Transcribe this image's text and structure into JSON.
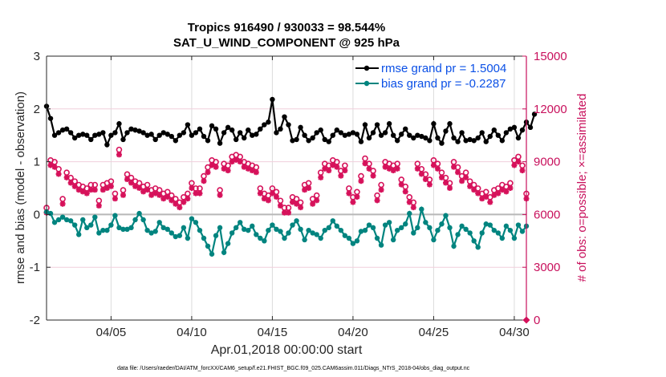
{
  "chart_data": {
    "type": "line",
    "title": "Tropics 916490 / 930033 = 98.544%",
    "subtitle": "SAT_U_WIND_COMPONENT @ 925 hPa",
    "xlabel": "Apr.01,2018 00:00:00 start",
    "ylabel_left": "rmse and bias (model - observation)",
    "ylabel_right": "# of obs: o=possible; ×=assimilated",
    "footnote": "data file: /Users/raeder/DAI/ATM_forcXX/CAM6_setup/f.e21.FHIST_BGC.f09_025.CAM6assim.011/Diags_NTrS_2018-04/obs_diag_output.nc",
    "x_units": "day of April 2018",
    "xlim": [
      1,
      30.75
    ],
    "ylim_left": [
      -2,
      3
    ],
    "ylim_right": [
      0,
      15000
    ],
    "x_ticks": [
      5,
      10,
      15,
      20,
      25,
      30
    ],
    "x_tick_labels": [
      "04/05",
      "04/10",
      "04/15",
      "04/20",
      "04/25",
      "04/30"
    ],
    "y_ticks_left": [
      3,
      2,
      1,
      0,
      -1,
      -2
    ],
    "y_tick_labels_left": [
      "3",
      "2",
      "1",
      "0",
      "-1",
      "-2"
    ],
    "y_ticks_right": [
      15000,
      12000,
      9000,
      6000,
      3000,
      0
    ],
    "y_tick_labels_right": [
      "15000",
      "12000",
      "9000",
      "6000",
      "3000",
      "0"
    ],
    "grid": true,
    "zero_line": true,
    "legend": {
      "placement": "top-right",
      "entries": [
        {
          "label": "rmse grand pr = 1.5004",
          "series": "rmse"
        },
        {
          "label": "bias grand pr = -0.2287",
          "series": "bias"
        }
      ]
    },
    "x_start_day": 1,
    "x_step_days": 0.25,
    "series": [
      {
        "name": "rmse",
        "axis": "left",
        "color": "#000000",
        "values": [
          2.05,
          1.82,
          1.5,
          1.55,
          1.6,
          1.62,
          1.55,
          1.45,
          1.5,
          1.52,
          1.5,
          1.42,
          1.5,
          1.52,
          1.55,
          1.32,
          1.5,
          1.55,
          1.72,
          1.42,
          1.55,
          1.62,
          1.6,
          1.58,
          1.55,
          1.5,
          1.52,
          1.42,
          1.5,
          1.55,
          1.52,
          1.48,
          1.4,
          1.5,
          1.55,
          1.7,
          1.5,
          1.55,
          1.62,
          1.48,
          1.4,
          1.68,
          1.62,
          1.35,
          1.55,
          1.65,
          1.6,
          1.42,
          1.55,
          1.45,
          1.6,
          1.5,
          1.52,
          1.62,
          1.7,
          1.75,
          2.18,
          1.55,
          1.62,
          1.85,
          1.7,
          1.4,
          1.42,
          1.65,
          1.5,
          1.4,
          1.45,
          1.55,
          1.6,
          1.42,
          1.38,
          1.5,
          1.6,
          1.55,
          1.5,
          1.52,
          1.55,
          1.52,
          1.38,
          1.7,
          1.45,
          1.55,
          1.7,
          1.5,
          1.55,
          1.72,
          1.5,
          1.4,
          1.52,
          1.62,
          1.5,
          1.45,
          1.5,
          1.48,
          1.45,
          1.4,
          1.72,
          1.45,
          1.35,
          1.58,
          1.72,
          1.45,
          1.38,
          1.55,
          1.4,
          1.42,
          1.4,
          1.45,
          1.55,
          1.38,
          1.48,
          1.6,
          1.5,
          1.4,
          1.55,
          1.62,
          1.65,
          1.45,
          1.6,
          1.75,
          1.65,
          1.9
        ]
      },
      {
        "name": "bias",
        "axis": "left",
        "color": "#00847f",
        "values": [
          0.05,
          0.02,
          -0.15,
          -0.1,
          -0.05,
          -0.1,
          -0.12,
          -0.2,
          -0.38,
          -0.1,
          -0.25,
          -0.2,
          -0.05,
          -0.35,
          -0.3,
          -0.3,
          -0.2,
          -0.02,
          -0.25,
          -0.28,
          -0.28,
          -0.25,
          -0.1,
          0.02,
          -0.1,
          -0.3,
          -0.35,
          -0.32,
          -0.15,
          -0.25,
          -0.28,
          -0.35,
          -0.42,
          -0.4,
          -0.25,
          -0.45,
          -0.08,
          -0.15,
          -0.3,
          -0.45,
          -0.6,
          -0.75,
          -0.4,
          -0.25,
          -0.72,
          -0.55,
          -0.35,
          -0.25,
          -0.15,
          -0.28,
          -0.3,
          -0.22,
          -0.38,
          -0.45,
          -0.5,
          -0.3,
          -0.2,
          -0.28,
          -0.32,
          -0.45,
          -0.35,
          -0.2,
          -0.12,
          -0.28,
          -0.48,
          -0.3,
          -0.35,
          -0.38,
          -0.45,
          -0.3,
          -0.25,
          -0.12,
          -0.22,
          -0.3,
          -0.4,
          -0.45,
          -0.55,
          -0.5,
          -0.32,
          -0.3,
          -0.2,
          -0.25,
          -0.45,
          -0.58,
          -0.2,
          -0.15,
          -0.48,
          -0.3,
          -0.25,
          -0.18,
          0.02,
          -0.35,
          -0.25,
          0.1,
          -0.15,
          -0.25,
          -0.48,
          -0.3,
          -0.18,
          -0.02,
          -0.25,
          -0.6,
          -0.38,
          -0.22,
          -0.28,
          -0.35,
          -0.5,
          -0.62,
          -0.35,
          -0.18,
          -0.2,
          -0.3,
          -0.35,
          -0.45,
          -0.22,
          -0.3,
          -0.45,
          -0.2,
          -0.32,
          -0.22
        ]
      },
      {
        "name": "obs possible",
        "axis": "right",
        "color": "#d6115a",
        "marker": "o",
        "values": [
          6200,
          8900,
          8800,
          8400,
          6700,
          8200,
          7900,
          7700,
          7500,
          7400,
          7300,
          7500,
          7500,
          6600,
          7500,
          7600,
          7700,
          7000,
          9500,
          7200,
          8100,
          7900,
          7700,
          7600,
          7400,
          7500,
          7200,
          7300,
          7200,
          7000,
          7100,
          6900,
          6700,
          6500,
          6800,
          7000,
          7600,
          7300,
          7300,
          8000,
          8500,
          8900,
          8800,
          7200,
          8700,
          8600,
          9100,
          9200,
          9100,
          8800,
          8700,
          8600,
          8500,
          7300,
          7000,
          6900,
          7300,
          7100,
          6600,
          6200,
          6200,
          6800,
          6700,
          6500,
          7500,
          7600,
          6700,
          6900,
          8200,
          8700,
          8600,
          8900,
          8800,
          8300,
          8600,
          7300,
          6800,
          7100,
          8000,
          9000,
          8700,
          8300,
          6900,
          7500,
          8800,
          8700,
          8600,
          8700,
          7800,
          7400,
          6800,
          6500,
          8700,
          8400,
          8100,
          7800,
          8900,
          8700,
          8200,
          7900,
          7600,
          8800,
          8500,
          8000,
          8200,
          7700,
          7500,
          7300,
          7000,
          7100,
          6800,
          7200,
          7300,
          7500,
          7400,
          7600,
          8900,
          9100,
          8600,
          7000
        ]
      },
      {
        "name": "obs assimilated",
        "axis": "right",
        "color": "#d6115a",
        "marker": "*",
        "values": [
          6100,
          8800,
          8700,
          8300,
          6600,
          8100,
          7800,
          7600,
          7400,
          7300,
          7200,
          7400,
          7400,
          6500,
          7400,
          7500,
          7600,
          6900,
          9400,
          7100,
          8000,
          7800,
          7600,
          7500,
          7300,
          7400,
          7100,
          7200,
          7100,
          6900,
          7000,
          6800,
          6600,
          6400,
          6700,
          6900,
          7500,
          7200,
          7200,
          7900,
          8400,
          8800,
          8700,
          7100,
          8600,
          8500,
          9000,
          9100,
          9000,
          8700,
          8600,
          8500,
          8400,
          7200,
          6900,
          6800,
          7200,
          7000,
          6500,
          6100,
          6100,
          6700,
          6600,
          6400,
          7400,
          7500,
          6600,
          6800,
          8100,
          8600,
          8500,
          8800,
          8700,
          8200,
          8500,
          7200,
          6700,
          7000,
          7900,
          8900,
          8600,
          8200,
          6800,
          7400,
          8700,
          8600,
          8500,
          8600,
          7700,
          7300,
          6700,
          6400,
          8600,
          8300,
          8000,
          7700,
          8800,
          8600,
          8100,
          7800,
          7500,
          8700,
          8400,
          7900,
          8100,
          7600,
          7400,
          7200,
          6900,
          7000,
          6700,
          7100,
          7200,
          7400,
          7300,
          7500,
          8800,
          9000,
          8500,
          6900
        ]
      }
    ],
    "extra_point": {
      "series": "obs assimilated",
      "x": 30.75,
      "value": 0
    }
  }
}
